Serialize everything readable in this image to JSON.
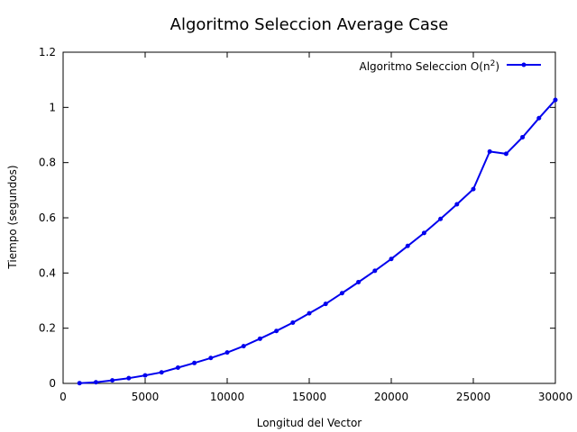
{
  "chart_data": {
    "type": "line",
    "title": "Algoritmo Seleccion Average Case",
    "xlabel": "Longitud del Vector",
    "ylabel": "Tiempo (segundos)",
    "xlim": [
      0,
      30000
    ],
    "ylim": [
      0,
      1.2
    ],
    "xticks": [
      0,
      5000,
      10000,
      15000,
      20000,
      25000,
      30000
    ],
    "xtick_labels": [
      "0",
      "5000",
      "10000",
      "15000",
      "20000",
      "25000",
      "30000"
    ],
    "yticks": [
      0,
      0.2,
      0.4,
      0.6,
      0.8,
      1,
      1.2
    ],
    "ytick_labels": [
      "0",
      "0.2",
      "0.4",
      "0.6",
      "0.8",
      "1",
      "1.2"
    ],
    "grid": false,
    "legend_position": "top-right",
    "series": [
      {
        "name": "Algoritmo Seleccion O(n2)",
        "legend_base": "Algoritmo Seleccion O(n",
        "legend_sup": "2",
        "legend_tail": ")",
        "color": "#0000ee",
        "x": [
          1000,
          2000,
          3000,
          4000,
          5000,
          6000,
          7000,
          8000,
          9000,
          10000,
          11000,
          12000,
          13000,
          14000,
          15000,
          16000,
          17000,
          18000,
          19000,
          20000,
          21000,
          22000,
          23000,
          24000,
          25000,
          26000,
          27000,
          28000,
          29000,
          30000
        ],
        "y": [
          0.001,
          0.004,
          0.011,
          0.019,
          0.029,
          0.04,
          0.057,
          0.074,
          0.092,
          0.112,
          0.135,
          0.162,
          0.19,
          0.22,
          0.254,
          0.288,
          0.327,
          0.367,
          0.408,
          0.451,
          0.498,
          0.545,
          0.596,
          0.649,
          0.704,
          0.84,
          0.832,
          0.892,
          0.961,
          1.027
        ]
      }
    ]
  }
}
